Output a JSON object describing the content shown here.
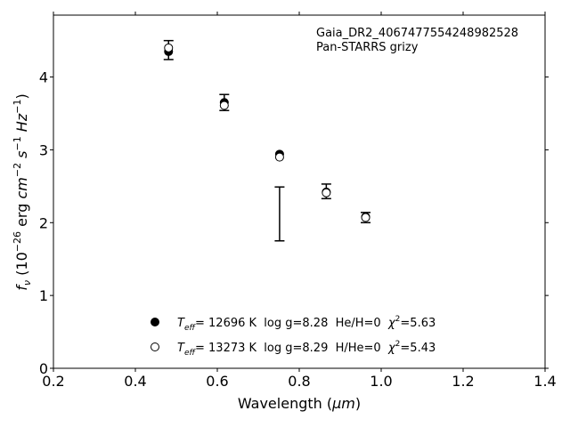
{
  "chart_data": {
    "type": "scatter",
    "annotations": [
      "Gaia_DR2_4067477554248982528",
      "Pan-STARRS grizy"
    ],
    "xlabel": {
      "main": "Wavelength (",
      "unit": "μm",
      "close": ")"
    },
    "ylabel": {
      "f": "f",
      "nu": "ν",
      "open": " (10",
      "exp": "−26",
      "erg": " erg ",
      "cm": "cm",
      "cmexp": "−2",
      "s": " s",
      "sexp": "−1",
      "hz": " Hz",
      "hzexp": "−1",
      "close": ")"
    },
    "xlim": [
      0.2,
      1.4
    ],
    "ylim": [
      0,
      4.85
    ],
    "xticks": [
      0.2,
      0.4,
      0.6,
      0.8,
      1.0,
      1.2,
      1.4
    ],
    "xtick_labels": [
      "0.2",
      "0.4",
      "0.6",
      "0.8",
      "1.0",
      "1.2",
      "1.4"
    ],
    "yticks": [
      0,
      1,
      2,
      3,
      4
    ],
    "ytick_labels": [
      "0",
      "1",
      "2",
      "3",
      "4"
    ],
    "observed": [
      {
        "x": 0.481,
        "y": 4.37,
        "err": 0.13
      },
      {
        "x": 0.617,
        "y": 3.65,
        "err": 0.11
      },
      {
        "x": 0.752,
        "y": 2.12,
        "err": 0.37
      },
      {
        "x": 0.866,
        "y": 2.43,
        "err": 0.1
      },
      {
        "x": 0.962,
        "y": 2.07,
        "err": 0.07
      }
    ],
    "series": [
      {
        "marker": "filled",
        "points": [
          {
            "x": 0.481,
            "y": 4.35
          },
          {
            "x": 0.617,
            "y": 3.65
          },
          {
            "x": 0.752,
            "y": 2.94
          },
          {
            "x": 0.866,
            "y": 2.42
          },
          {
            "x": 0.962,
            "y": 2.08
          }
        ],
        "legend": {
          "T": "T",
          "eff": "eff",
          "rest": "= 12696 K  log g=8.28  He/H=0  ",
          "chi": "χ",
          "chiexp": "2",
          "chival": "=5.63"
        }
      },
      {
        "marker": "open",
        "points": [
          {
            "x": 0.481,
            "y": 4.4
          },
          {
            "x": 0.617,
            "y": 3.61
          },
          {
            "x": 0.752,
            "y": 2.9
          },
          {
            "x": 0.866,
            "y": 2.41
          },
          {
            "x": 0.962,
            "y": 2.07
          }
        ],
        "legend": {
          "T": "T",
          "eff": "eff",
          "rest": "= 13273 K  log g=8.29  H/He=0  ",
          "chi": "χ",
          "chiexp": "2",
          "chival": "=5.43"
        }
      }
    ],
    "grid": false,
    "legend_position": "bottom-center"
  }
}
